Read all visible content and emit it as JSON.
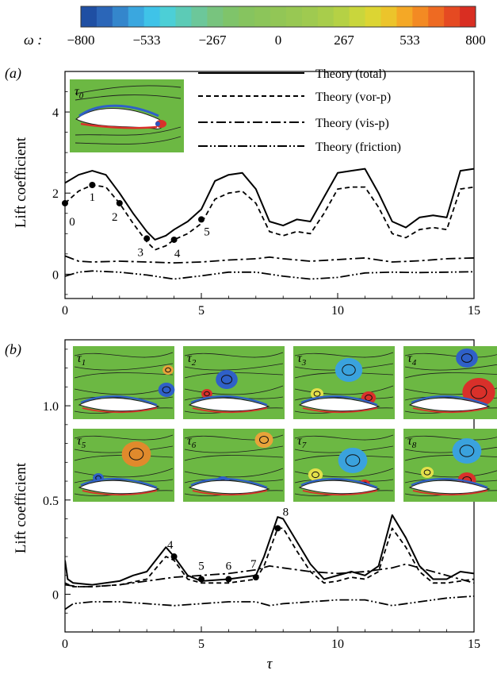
{
  "colorbar": {
    "symbol": "ω :",
    "ticks": [
      "−800",
      "−533",
      "−267",
      "0",
      "267",
      "533",
      "800"
    ],
    "colors": [
      "#1f4fa3",
      "#2b66b8",
      "#3486cc",
      "#3aa7df",
      "#3fc3e8",
      "#4ccfd6",
      "#5ccbb6",
      "#6cc79a",
      "#78c47e",
      "#7fc46a",
      "#86c45f",
      "#8cc55a",
      "#92c656",
      "#98c853",
      "#9fca50",
      "#a8cd4b",
      "#b5d145",
      "#c9d63c",
      "#dcd533",
      "#ecc42b",
      "#f4a826",
      "#f38a23",
      "#ee6a22",
      "#e54a22",
      "#d92e22"
    ]
  },
  "panel_a": {
    "label": "(a)",
    "ylabel": "Lift coefficient",
    "inset": {
      "label_main": "τ",
      "label_sub": "0"
    },
    "legend": [
      "Theory (total)",
      "Theory (vor-p)",
      "Theory (vis-p)",
      "Theory (friction)"
    ],
    "point_labels": [
      "0",
      "1",
      "2",
      "3",
      "4",
      "5"
    ],
    "yticks": [
      "0",
      "2",
      "4"
    ],
    "xticks": [
      "0",
      "5",
      "10",
      "15"
    ]
  },
  "panel_b": {
    "label": "(b)",
    "ylabel": "Lift coefficient",
    "xlabel": "τ",
    "insets": [
      {
        "main": "τ",
        "sub": "1"
      },
      {
        "main": "τ",
        "sub": "2"
      },
      {
        "main": "τ",
        "sub": "3"
      },
      {
        "main": "τ",
        "sub": "4"
      },
      {
        "main": "τ",
        "sub": "5"
      },
      {
        "main": "τ",
        "sub": "6"
      },
      {
        "main": "τ",
        "sub": "7"
      },
      {
        "main": "τ",
        "sub": "8"
      }
    ],
    "point_labels": [
      "4",
      "5",
      "6",
      "7",
      "8"
    ],
    "yticks": [
      "0",
      "0.5",
      "1.0"
    ],
    "xticks": [
      "0",
      "5",
      "10",
      "15"
    ]
  },
  "chart_data": [
    {
      "type": "line",
      "panel": "a",
      "xlim": [
        0,
        15
      ],
      "ylim": [
        -0.6,
        5
      ],
      "series": [
        {
          "name": "Theory (total)",
          "style": "solid",
          "x": [
            0,
            0.5,
            1,
            1.5,
            2,
            2.5,
            3,
            3.3,
            3.7,
            4,
            4.5,
            5,
            5.5,
            6,
            6.5,
            7,
            7.5,
            8,
            8.5,
            9,
            9.5,
            10,
            10.5,
            11,
            11.5,
            12,
            12.5,
            13,
            13.5,
            14,
            14.5,
            15
          ],
          "y": [
            2.25,
            2.45,
            2.55,
            2.45,
            2.0,
            1.5,
            1.05,
            0.85,
            0.95,
            1.1,
            1.3,
            1.6,
            2.3,
            2.45,
            2.5,
            2.1,
            1.3,
            1.2,
            1.35,
            1.3,
            1.9,
            2.5,
            2.55,
            2.6,
            2.0,
            1.3,
            1.15,
            1.4,
            1.45,
            1.4,
            2.55,
            2.6
          ]
        },
        {
          "name": "Theory (vor-p)",
          "style": "dash",
          "x": [
            0,
            0.5,
            1,
            1.5,
            2,
            2.5,
            3,
            3.3,
            3.7,
            4,
            4.5,
            5,
            5.5,
            6,
            6.5,
            7,
            7.5,
            8,
            8.5,
            9,
            9.5,
            10,
            10.5,
            11,
            11.5,
            12,
            12.5,
            13,
            13.5,
            14,
            14.5,
            15
          ],
          "y": [
            1.75,
            2.05,
            2.2,
            2.15,
            1.75,
            1.25,
            0.8,
            0.6,
            0.7,
            0.85,
            1.0,
            1.25,
            1.85,
            2.0,
            2.05,
            1.75,
            1.05,
            0.95,
            1.05,
            1.0,
            1.5,
            2.1,
            2.15,
            2.15,
            1.65,
            1.0,
            0.9,
            1.1,
            1.15,
            1.1,
            2.1,
            2.15
          ]
        },
        {
          "name": "Theory (vis-p)",
          "style": "dashdot",
          "x": [
            0,
            0.5,
            1,
            2,
            3,
            4,
            5,
            6,
            7,
            7.5,
            8,
            9,
            10,
            11,
            12,
            13,
            14,
            15
          ],
          "y": [
            0.45,
            0.32,
            0.3,
            0.32,
            0.3,
            0.28,
            0.3,
            0.35,
            0.38,
            0.42,
            0.38,
            0.32,
            0.36,
            0.4,
            0.3,
            0.33,
            0.38,
            0.4
          ]
        },
        {
          "name": "Theory (friction)",
          "style": "dashdotdot",
          "x": [
            0,
            0.5,
            1,
            2,
            3,
            4,
            5,
            6,
            7,
            8,
            9,
            10,
            11,
            12,
            13,
            14,
            15
          ],
          "y": [
            -0.05,
            0.05,
            0.08,
            0.05,
            -0.02,
            -0.12,
            -0.04,
            0.05,
            0.05,
            -0.05,
            -0.12,
            -0.08,
            0.03,
            0.05,
            0.04,
            0.05,
            0.06
          ]
        }
      ],
      "markers": [
        {
          "label": "0",
          "x": 0.0,
          "y": 1.75
        },
        {
          "label": "1",
          "x": 1.0,
          "y": 2.2
        },
        {
          "label": "2",
          "x": 2.0,
          "y": 1.75
        },
        {
          "label": "3",
          "x": 3.0,
          "y": 0.88
        },
        {
          "label": "4",
          "x": 4.0,
          "y": 0.85
        },
        {
          "label": "5",
          "x": 5.0,
          "y": 1.35
        }
      ]
    },
    {
      "type": "line",
      "panel": "b",
      "xlim": [
        0,
        15
      ],
      "ylim": [
        -0.2,
        1.35
      ],
      "series": [
        {
          "name": "Theory (total)",
          "style": "solid",
          "x": [
            0,
            0.1,
            0.3,
            1,
            2,
            2.5,
            3,
            3.7,
            4,
            4.5,
            5,
            6,
            7,
            7.3,
            7.8,
            8,
            8.5,
            9,
            9.5,
            10,
            10.5,
            11,
            11.5,
            12,
            12.5,
            13,
            13.5,
            14,
            14.5,
            15
          ],
          "y": [
            0.18,
            0.08,
            0.06,
            0.05,
            0.07,
            0.1,
            0.12,
            0.25,
            0.2,
            0.1,
            0.07,
            0.08,
            0.1,
            0.2,
            0.41,
            0.4,
            0.28,
            0.16,
            0.08,
            0.1,
            0.12,
            0.1,
            0.15,
            0.42,
            0.3,
            0.15,
            0.08,
            0.08,
            0.12,
            0.11
          ]
        },
        {
          "name": "Theory (vor-p)",
          "style": "dash",
          "x": [
            0,
            0.3,
            1,
            2,
            3,
            3.7,
            4,
            4.5,
            5,
            6,
            7,
            7.3,
            7.8,
            8,
            8.5,
            9,
            9.5,
            10,
            10.5,
            11,
            11.5,
            12,
            12.5,
            13,
            13.5,
            14,
            15
          ],
          "y": [
            0.06,
            0.04,
            0.04,
            0.05,
            0.08,
            0.2,
            0.18,
            0.08,
            0.06,
            0.06,
            0.08,
            0.15,
            0.35,
            0.35,
            0.23,
            0.12,
            0.06,
            0.07,
            0.09,
            0.08,
            0.12,
            0.35,
            0.25,
            0.12,
            0.06,
            0.06,
            0.08
          ]
        },
        {
          "name": "Theory (vis-p)",
          "style": "dashdot",
          "x": [
            0,
            0.5,
            1,
            2,
            3,
            4,
            5,
            6,
            7,
            7.5,
            8,
            9,
            10,
            11,
            12,
            12.5,
            13,
            14,
            15
          ],
          "y": [
            0.05,
            0.04,
            0.04,
            0.05,
            0.07,
            0.09,
            0.1,
            0.11,
            0.13,
            0.15,
            0.14,
            0.12,
            0.11,
            0.12,
            0.14,
            0.16,
            0.14,
            0.1,
            0.06
          ]
        },
        {
          "name": "Theory (friction)",
          "style": "dashdotdot",
          "x": [
            0,
            0.3,
            1,
            2,
            3,
            4,
            5,
            6,
            7,
            7.5,
            8,
            9,
            10,
            11,
            12,
            13,
            14,
            15
          ],
          "y": [
            -0.08,
            -0.05,
            -0.04,
            -0.04,
            -0.05,
            -0.06,
            -0.05,
            -0.04,
            -0.04,
            -0.06,
            -0.05,
            -0.04,
            -0.03,
            -0.03,
            -0.06,
            -0.04,
            -0.02,
            -0.01
          ]
        }
      ],
      "markers": [
        {
          "label": "4",
          "x": 4.0,
          "y": 0.2
        },
        {
          "label": "5",
          "x": 5.0,
          "y": 0.08
        },
        {
          "label": "6",
          "x": 6.0,
          "y": 0.08
        },
        {
          "label": "7",
          "x": 7.0,
          "y": 0.09
        },
        {
          "label": "8",
          "x": 7.8,
          "y": 0.35
        }
      ]
    }
  ]
}
